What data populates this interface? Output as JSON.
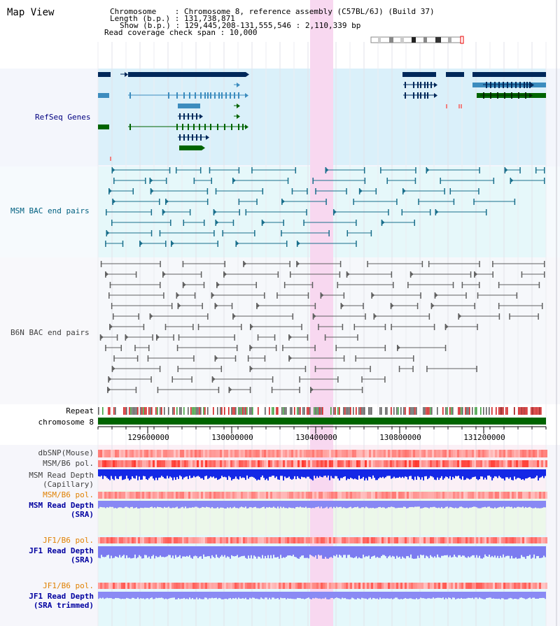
{
  "header": {
    "view_title": "Map View",
    "chromosome_line": "Chromosome    : Chromosome 8, reference assembly (C57BL/6J) (Build 37)",
    "length_line": "Length (b.p.) : 131,738,871",
    "show_line": "Show (b.p.) : 129,445,208-131,555,546 : 2,110,339 bp",
    "coverage_line": "Read coverage check span : 10,000"
  },
  "tracks": {
    "refseq": "RefSeq Genes",
    "msm_bac": "MSM BAC end pairs",
    "b6n_bac": "B6N BAC end pairs",
    "repeat": "Repeat",
    "chromosome": "chromosome 8",
    "dbsnp": "dbSNP(Mouse)",
    "msm_b6_pol_1": "MSM/B6 pol.",
    "msm_depth_cap_1": "MSM Read Depth",
    "msm_depth_cap_2": "(Capillary)",
    "msm_b6_pol_2": "MSM/B6 pol.",
    "msm_depth_sra_1": "MSM Read Depth",
    "msm_depth_sra_2": "(SRA)",
    "jf1_pol_1": "JF1/B6 pol.",
    "jf1_depth_sra_1": "JF1 Read Depth",
    "jf1_depth_sra_2": "(SRA)",
    "jf1_pol_2": "JF1/B6 pol.",
    "jf1_depth_trim_1": "JF1 Read Depth",
    "jf1_depth_trim_2": "(SRA trimmed)"
  },
  "axis_ticks": [
    "129600000",
    "130000000",
    "130400000",
    "130800000",
    "131200000"
  ],
  "colors": {
    "refseq_label": "#000080",
    "msm_label": "#006080",
    "b6n_label": "#404040",
    "gene_dark": "#00285a",
    "gene_mid": "#3c8cbe",
    "gene_green": "#006400",
    "highlight": "#f8d8f0"
  }
}
